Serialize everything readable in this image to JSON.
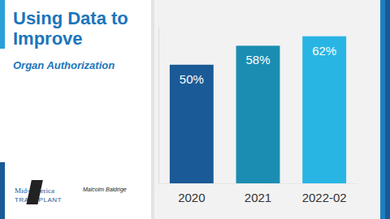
{
  "chart_data": {
    "type": "bar",
    "title": "Using Data to Improve",
    "subtitle": "Organ Authorization",
    "categories": [
      "2020",
      "2021",
      "2022-02"
    ],
    "values": [
      50,
      58,
      62
    ],
    "value_labels": [
      "50%",
      "58%",
      "62%"
    ],
    "colors": [
      "#1a5a96",
      "#1b8db2",
      "#29b5e4"
    ],
    "ylim": [
      0,
      66
    ],
    "yticks": [
      0
    ],
    "grid": false,
    "data_labels": true,
    "tick_labels": "x",
    "annotations": [
      "Mid-America",
      "TRANSPLANT",
      "Malcolm Baldrige"
    ]
  }
}
